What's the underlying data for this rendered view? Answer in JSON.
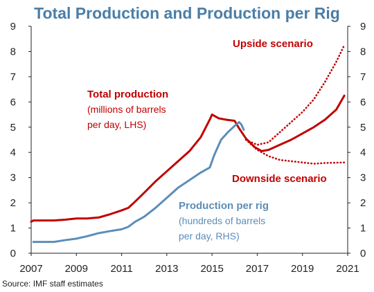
{
  "chart_data": {
    "type": "line",
    "title": "Total Production and Production per Rig",
    "source": "Source: IMF staff estimates",
    "x_ticks": [
      "2007",
      "2009",
      "2011",
      "2013",
      "2015",
      "2017",
      "2019",
      "2021"
    ],
    "xlim": [
      2007,
      2021
    ],
    "y_left": {
      "ticks": [
        "0",
        "1",
        "2",
        "3",
        "4",
        "5",
        "6",
        "7",
        "8",
        "9"
      ],
      "lim": [
        0,
        9
      ]
    },
    "y_right": {
      "ticks": [
        "0",
        "1",
        "2",
        "3",
        "4",
        "5",
        "6",
        "7",
        "8",
        "9"
      ],
      "lim": [
        0,
        9
      ]
    },
    "grid": false,
    "colors": {
      "total": "#c00000",
      "per_rig": "#5b8db8"
    },
    "series": [
      {
        "key": "total",
        "axis": "left",
        "style": "solid",
        "points": [
          [
            2007.0,
            1.25
          ],
          [
            2007.1,
            1.3
          ],
          [
            2008.0,
            1.3
          ],
          [
            2008.5,
            1.33
          ],
          [
            2009.0,
            1.38
          ],
          [
            2009.5,
            1.38
          ],
          [
            2010.0,
            1.42
          ],
          [
            2010.5,
            1.55
          ],
          [
            2011.0,
            1.7
          ],
          [
            2011.3,
            1.8
          ],
          [
            2011.6,
            2.05
          ],
          [
            2012.0,
            2.4
          ],
          [
            2012.5,
            2.85
          ],
          [
            2013.0,
            3.25
          ],
          [
            2013.5,
            3.65
          ],
          [
            2014.0,
            4.05
          ],
          [
            2014.5,
            4.6
          ],
          [
            2014.9,
            5.3
          ],
          [
            2015.0,
            5.5
          ],
          [
            2015.3,
            5.35
          ],
          [
            2015.6,
            5.3
          ],
          [
            2016.0,
            5.25
          ],
          [
            2016.2,
            4.95
          ],
          [
            2016.5,
            4.55
          ],
          [
            2016.9,
            4.2
          ],
          [
            2017.2,
            4.05
          ],
          [
            2017.5,
            4.1
          ],
          [
            2018.0,
            4.3
          ],
          [
            2018.5,
            4.5
          ],
          [
            2019.0,
            4.75
          ],
          [
            2019.5,
            5.0
          ],
          [
            2020.0,
            5.3
          ],
          [
            2020.5,
            5.7
          ],
          [
            2020.85,
            6.25
          ]
        ]
      },
      {
        "key": "upside",
        "axis": "left",
        "style": "dotted",
        "points": [
          [
            2016.5,
            4.5
          ],
          [
            2017.0,
            4.3
          ],
          [
            2017.5,
            4.4
          ],
          [
            2018.0,
            4.8
          ],
          [
            2018.5,
            5.2
          ],
          [
            2019.0,
            5.6
          ],
          [
            2019.5,
            6.1
          ],
          [
            2020.0,
            6.8
          ],
          [
            2020.5,
            7.6
          ],
          [
            2020.85,
            8.25
          ]
        ]
      },
      {
        "key": "downside",
        "axis": "left",
        "style": "dotted",
        "points": [
          [
            2016.5,
            4.5
          ],
          [
            2017.0,
            4.1
          ],
          [
            2017.5,
            3.85
          ],
          [
            2018.0,
            3.7
          ],
          [
            2018.5,
            3.65
          ],
          [
            2019.0,
            3.6
          ],
          [
            2019.5,
            3.55
          ],
          [
            2020.0,
            3.58
          ],
          [
            2020.85,
            3.6
          ]
        ]
      },
      {
        "key": "per_rig",
        "axis": "right",
        "style": "solid",
        "points": [
          [
            2007.1,
            0.45
          ],
          [
            2008.0,
            0.45
          ],
          [
            2008.5,
            0.52
          ],
          [
            2009.0,
            0.58
          ],
          [
            2009.5,
            0.68
          ],
          [
            2010.0,
            0.8
          ],
          [
            2010.5,
            0.88
          ],
          [
            2011.0,
            0.95
          ],
          [
            2011.3,
            1.05
          ],
          [
            2011.6,
            1.25
          ],
          [
            2012.0,
            1.45
          ],
          [
            2012.5,
            1.8
          ],
          [
            2013.0,
            2.2
          ],
          [
            2013.5,
            2.6
          ],
          [
            2014.0,
            2.9
          ],
          [
            2014.5,
            3.2
          ],
          [
            2014.9,
            3.4
          ],
          [
            2015.1,
            3.9
          ],
          [
            2015.4,
            4.5
          ],
          [
            2015.7,
            4.8
          ],
          [
            2016.0,
            5.05
          ],
          [
            2016.2,
            5.2
          ],
          [
            2016.3,
            5.1
          ],
          [
            2016.4,
            4.9
          ]
        ]
      }
    ],
    "annotations": {
      "total_title": "Total production",
      "total_sub1": "(millions of barrels",
      "total_sub2": "per day, LHS)",
      "upside": "Upside scenario",
      "downside": "Downside scenario",
      "rig_title": "Production per rig",
      "rig_sub1": "(hundreds of barrels",
      "rig_sub2": "per day, RHS)"
    }
  }
}
